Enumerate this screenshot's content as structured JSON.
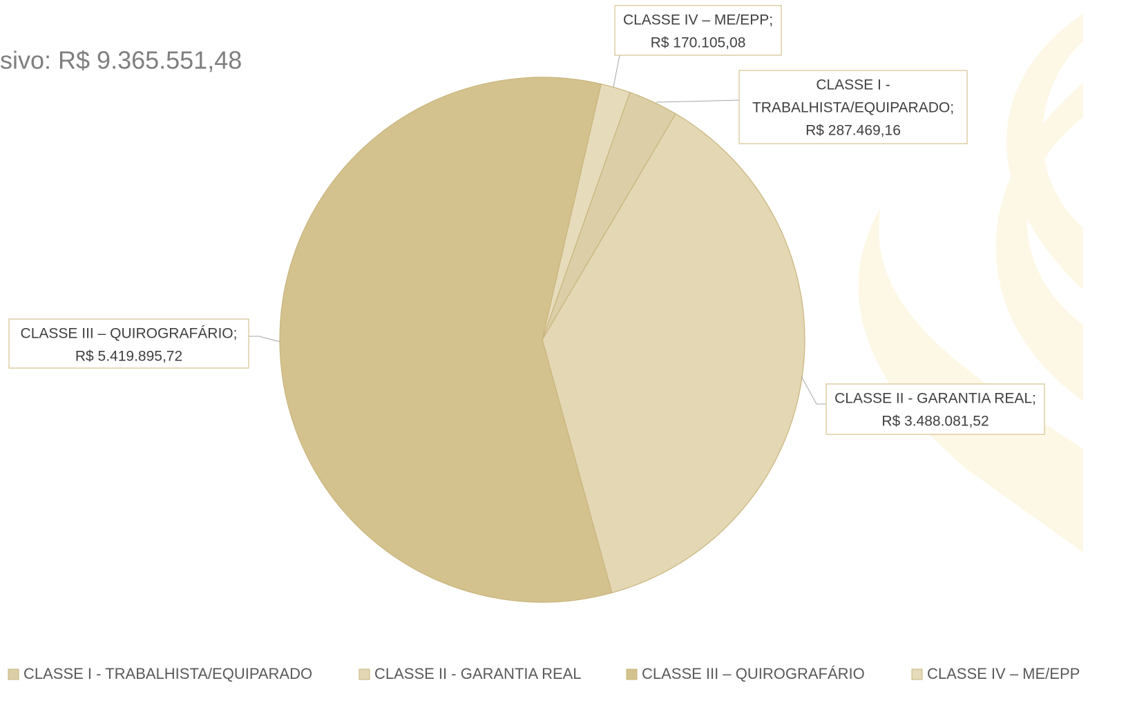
{
  "chart_data": {
    "type": "pie",
    "title": "sivo: R$ 9.365.551,48",
    "categories": [
      "CLASSE I - TRABALHISTA/EQUIPARADO",
      "CLASSE II - GARANTIA REAL",
      "CLASSE III –  QUIROGRAFÁRIO",
      "CLASSE IV – ME/EPP"
    ],
    "values": [
      287469.16,
      3488081.52,
      5419895.72,
      170105.08
    ],
    "value_labels": [
      "R$ 287.469,16",
      "R$ 3.488.081,52",
      "R$ 5.419.895,72",
      "R$ 170.105,08"
    ],
    "data_labels": [
      [
        "CLASSE I -",
        "TRABALHISTA/EQUIPARADO;"
      ],
      [
        "CLASSE II - GARANTIA REAL;"
      ],
      [
        "CLASSE III –  QUIROGRAFÁRIO;"
      ],
      [
        "CLASSE IV – ME/EPP;"
      ]
    ],
    "colors": [
      "#dccfa8",
      "#e3d7b4",
      "#d4c28e",
      "#e6dcbb"
    ],
    "legend": "bottom"
  }
}
